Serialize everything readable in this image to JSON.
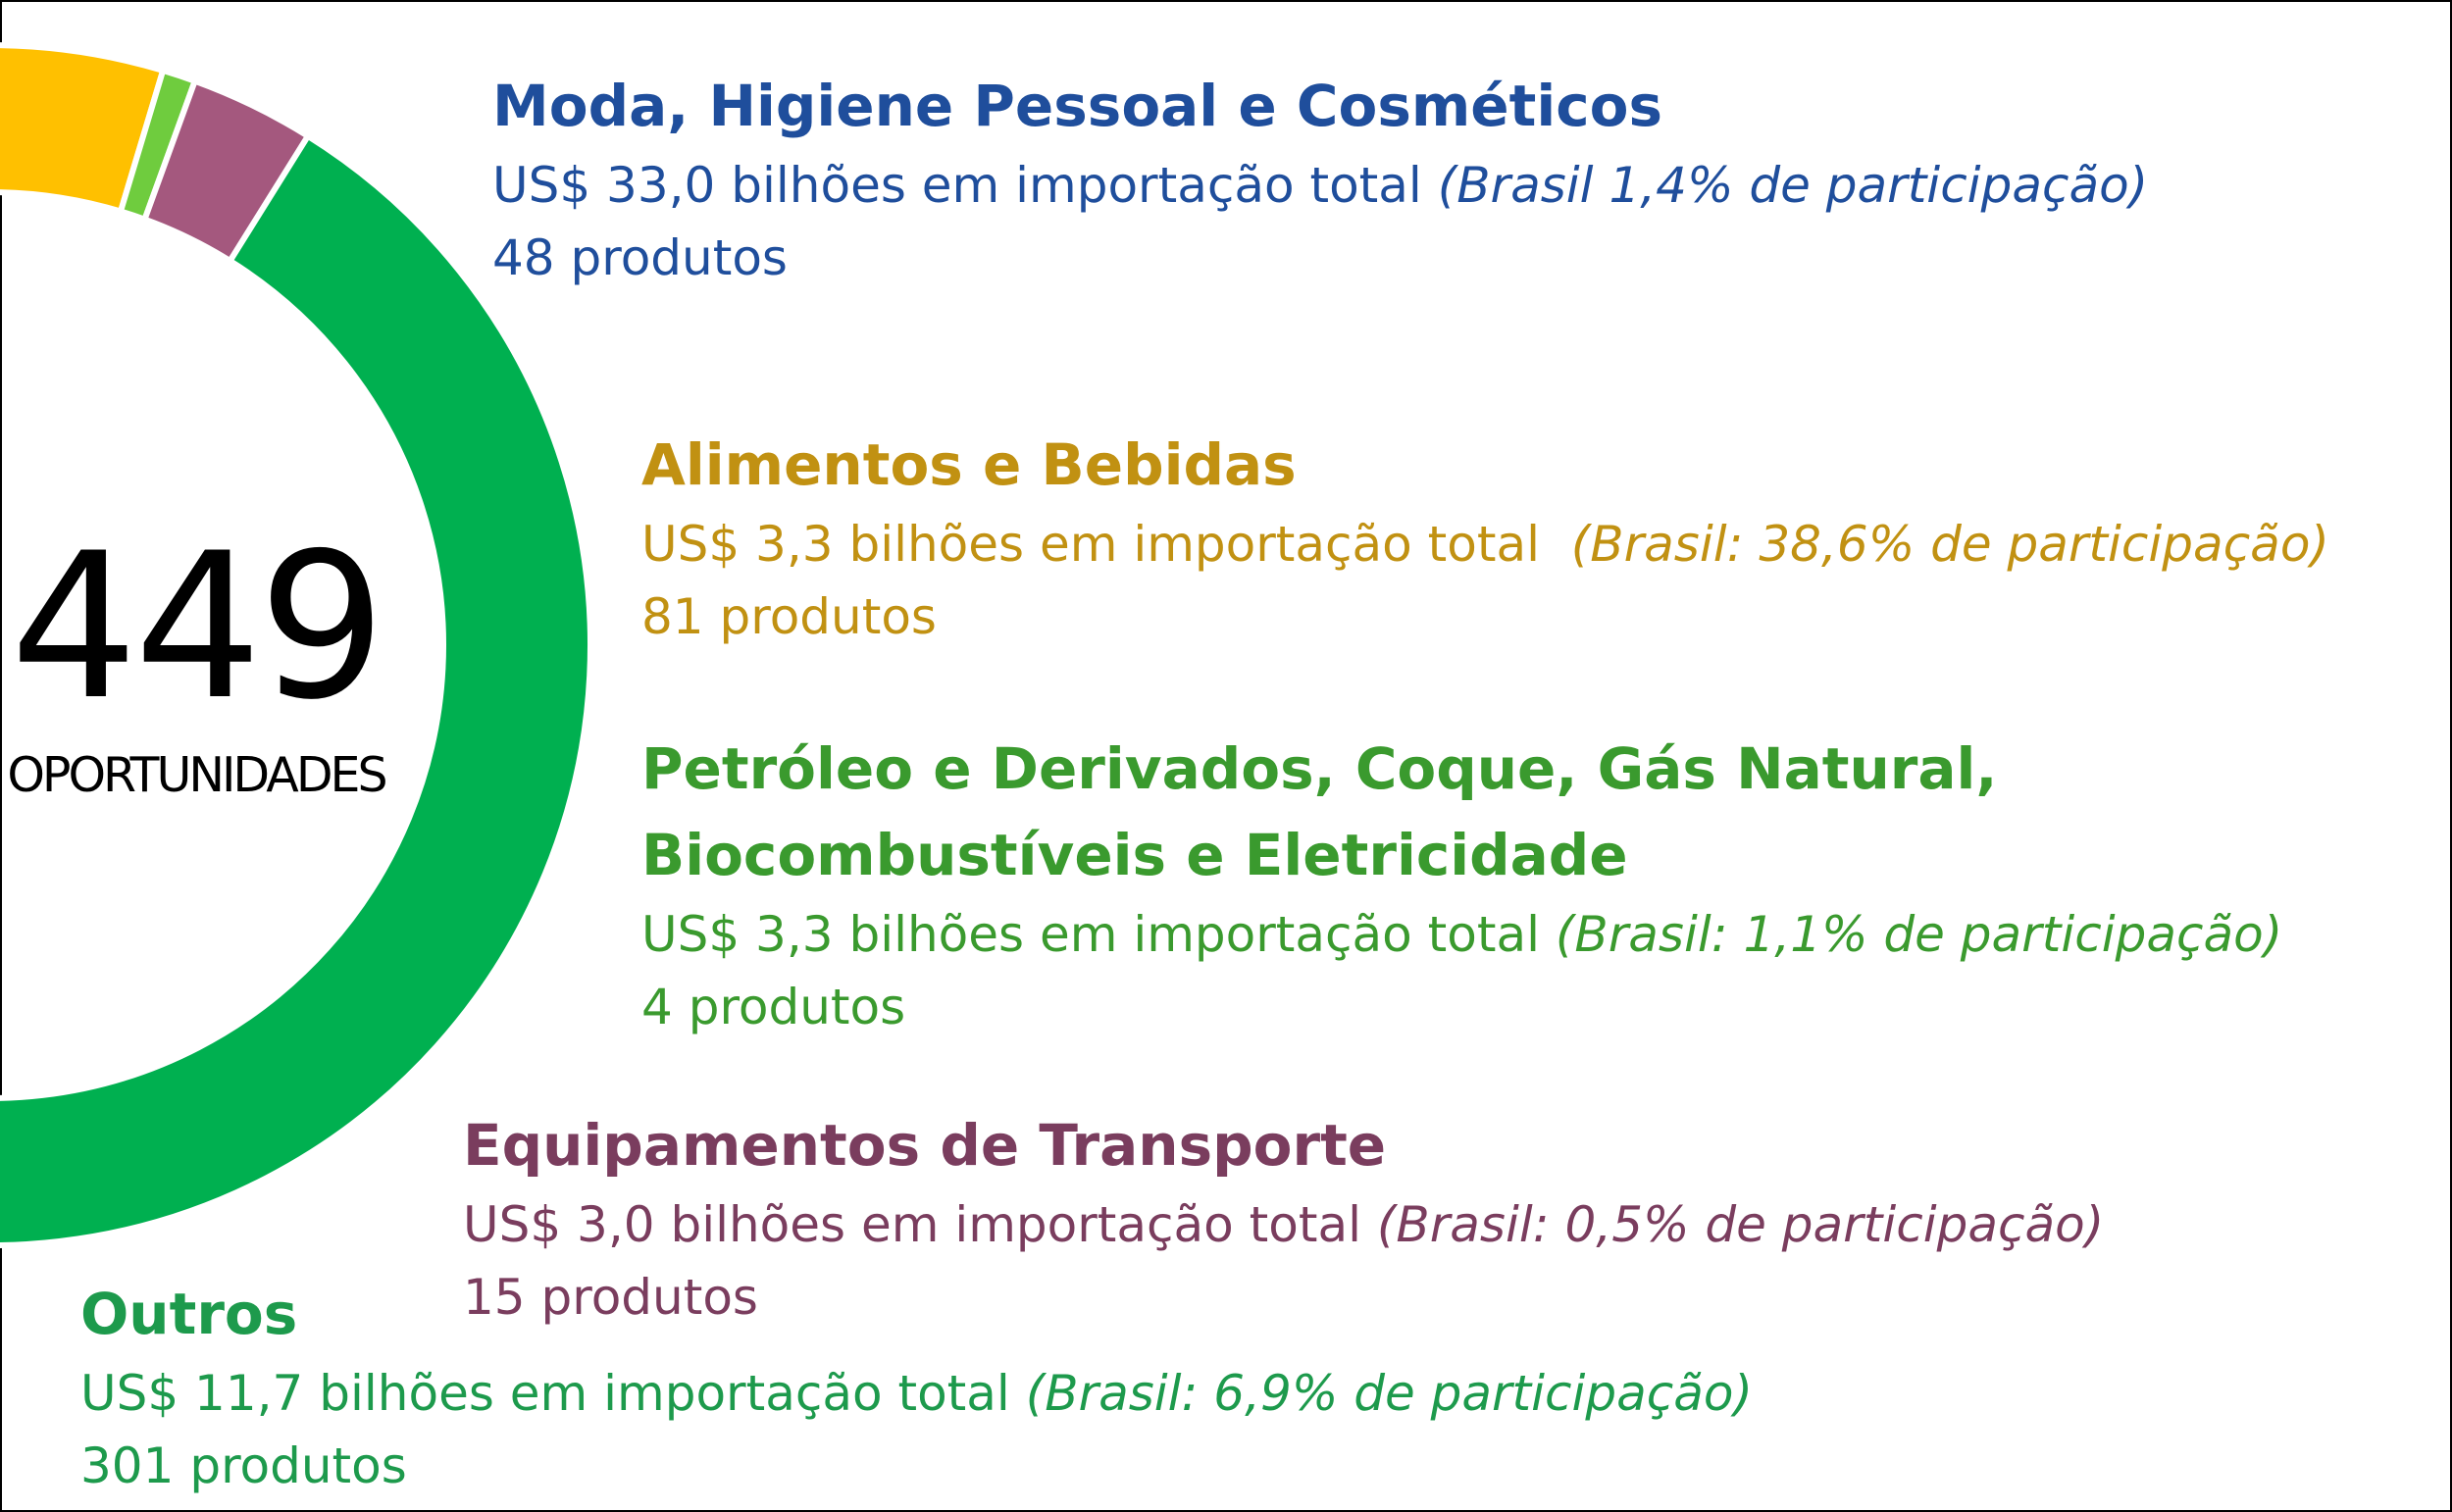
{
  "chart_data": {
    "type": "pie",
    "variant": "donut",
    "center": {
      "value": "449",
      "label": "OPORTUNIDADES"
    },
    "total_products": 449,
    "series": [
      {
        "name": "Moda, Higiene Pessoal e Cosméticos",
        "products": 48,
        "products_label": "48 produtos",
        "import_label": "US$ 33,0 bilhões em importação total",
        "share_label": "(Brasil 1,4% de participação)",
        "import_usd_billions": 33.0,
        "brazil_share_pct": 1.4,
        "color": "#0b6fe4",
        "text_color": "#1f4e9c"
      },
      {
        "name": "Alimentos e Bebidas",
        "products": 81,
        "products_label": "81 produtos",
        "import_label": "US$ 3,3 bilhões em importação total",
        "share_label": "(Brasil: 38,6% de participação)",
        "import_usd_billions": 3.3,
        "brazil_share_pct": 38.6,
        "color": "#ffc000",
        "text_color": "#c19112"
      },
      {
        "name": "Petróleo e Derivados, Coque, Gás Natural, Biocombustíveis e Eletricidade",
        "products": 4,
        "products_label": "4 produtos",
        "import_label": "US$ 3,3 bilhões em importação total",
        "share_label": "(Brasil: 1,1% de participação)",
        "import_usd_billions": 3.3,
        "brazil_share_pct": 1.1,
        "color": "#6fcc3e",
        "text_color": "#3a9a2e"
      },
      {
        "name": "Equipamentos de Transporte",
        "products": 15,
        "products_label": "15 produtos",
        "import_label": "US$ 3,0 bilhões em importação total",
        "share_label": "(Brasil: 0,5% de participação)",
        "import_usd_billions": 3.0,
        "brazil_share_pct": 0.5,
        "color": "#a4587e",
        "text_color": "#7a3d5e"
      },
      {
        "name": "Outros",
        "products": 301,
        "products_label": "301 produtos",
        "import_label": "US$ 11,7 bilhões em importação total",
        "share_label": "(Brasil: 6,9% de participação)",
        "import_usd_billions": 11.7,
        "brazil_share_pct": 6.9,
        "color": "#00b050",
        "text_color": "#1d9a4c"
      }
    ]
  }
}
